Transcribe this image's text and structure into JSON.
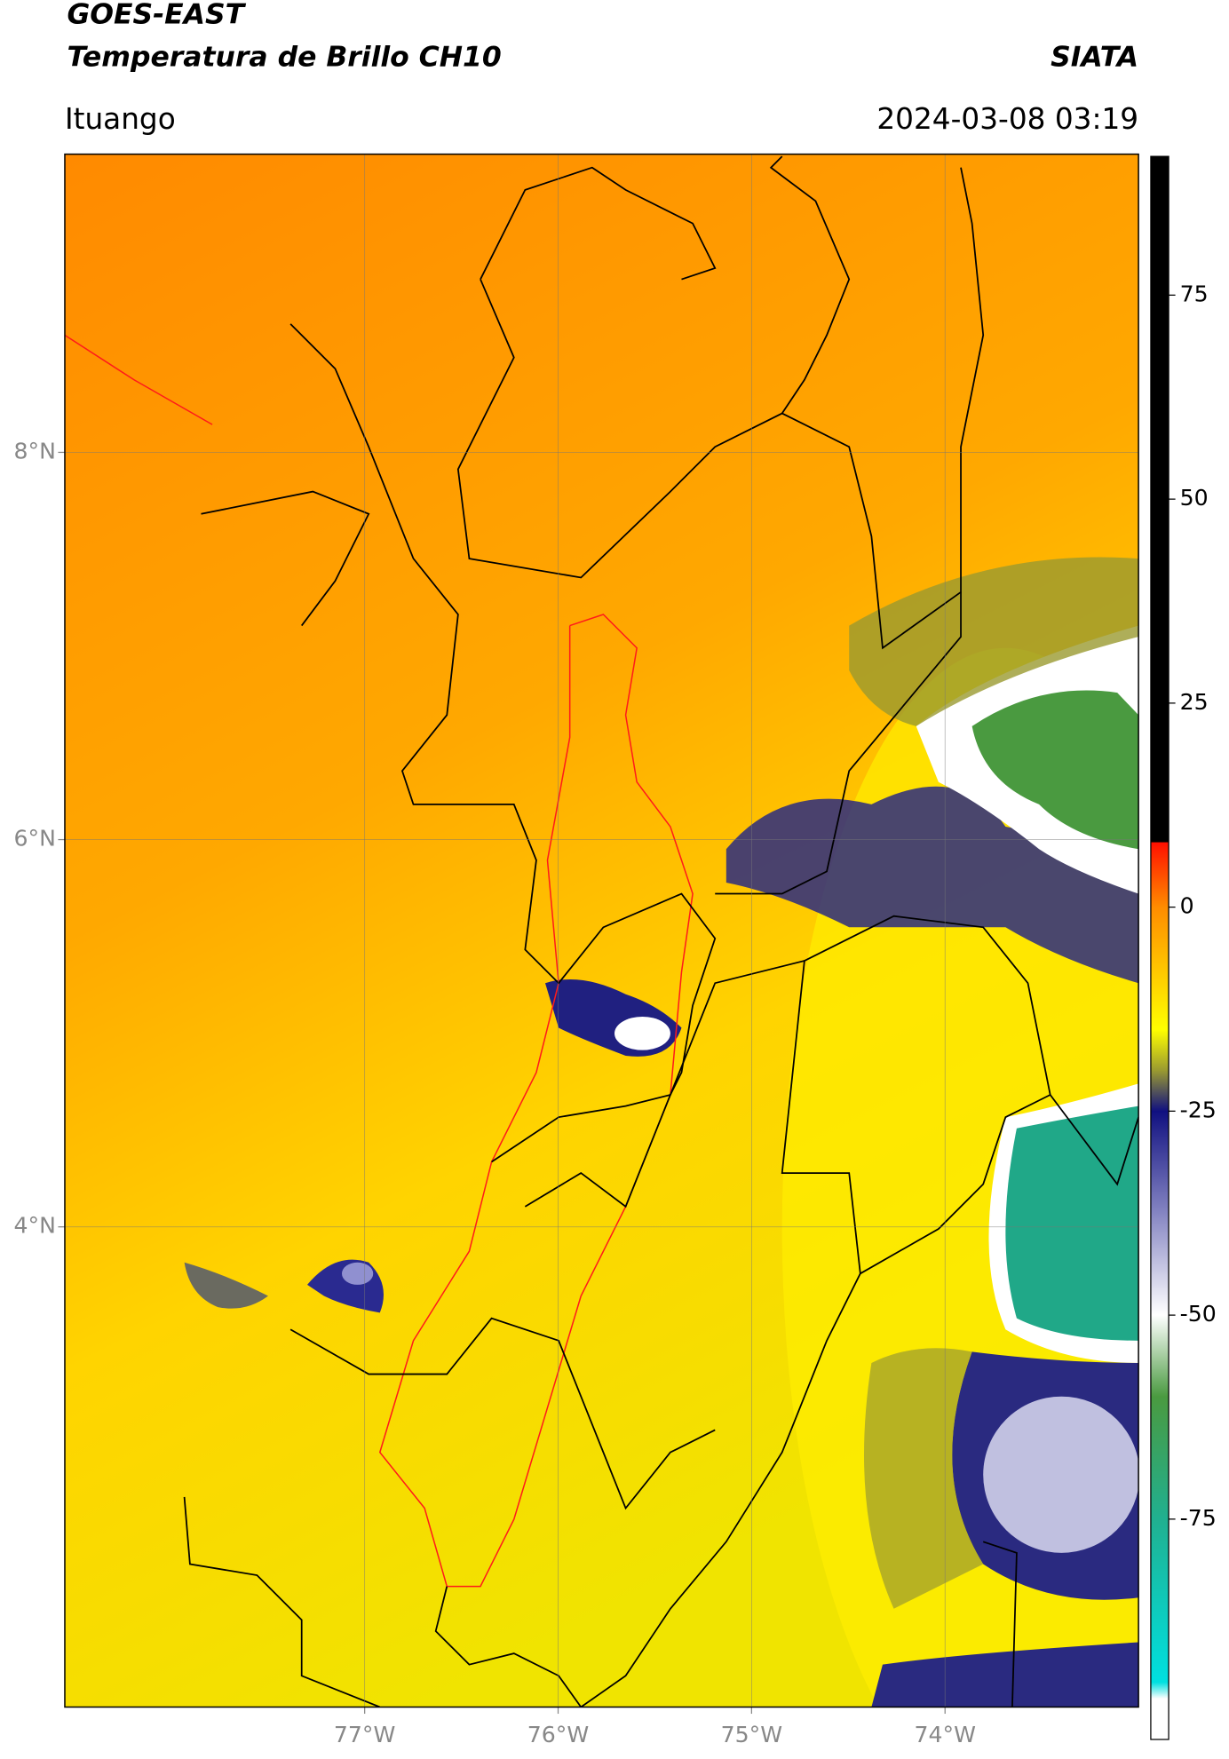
{
  "header": {
    "title": "GOES-EAST",
    "subtitle": "Temperatura de Brillo CH10",
    "source": "SIATA",
    "location": "Ituango",
    "datetime": "2024-03-08 03:19"
  },
  "map": {
    "xlim": [
      -78.55,
      -73.0
    ],
    "ylim": [
      1.52,
      9.54
    ],
    "grid": true,
    "xticks": [
      {
        "value": -77,
        "label": "77°W"
      },
      {
        "value": -76,
        "label": "76°W"
      },
      {
        "value": -75,
        "label": "75°W"
      },
      {
        "value": -74,
        "label": "74°W"
      }
    ],
    "yticks": [
      {
        "value": 4,
        "label": "4°N"
      },
      {
        "value": 6,
        "label": "6°N"
      },
      {
        "value": 8,
        "label": "8°N"
      }
    ]
  },
  "colorbar": {
    "lim": [
      -102,
      92
    ],
    "ticks": [
      75,
      50,
      25,
      0,
      -25,
      -50,
      -75
    ],
    "stops": [
      {
        "value": 92,
        "color": "#000000"
      },
      {
        "value": 8,
        "color": "#000000"
      },
      {
        "value": 7.9,
        "color": "#ff1000"
      },
      {
        "value": 0,
        "color": "#ff8c00"
      },
      {
        "value": -10,
        "color": "#ffd800"
      },
      {
        "value": -15,
        "color": "#ffff00"
      },
      {
        "value": -20,
        "color": "#9a9a30"
      },
      {
        "value": -25,
        "color": "#101080"
      },
      {
        "value": -37,
        "color": "#8080c0"
      },
      {
        "value": -50,
        "color": "#ffffff"
      },
      {
        "value": -60,
        "color": "#4a9a40"
      },
      {
        "value": -75,
        "color": "#20b090"
      },
      {
        "value": -95,
        "color": "#00e0e0"
      },
      {
        "value": -97,
        "color": "#ffffff"
      },
      {
        "value": -102,
        "color": "#ffffff"
      }
    ]
  }
}
